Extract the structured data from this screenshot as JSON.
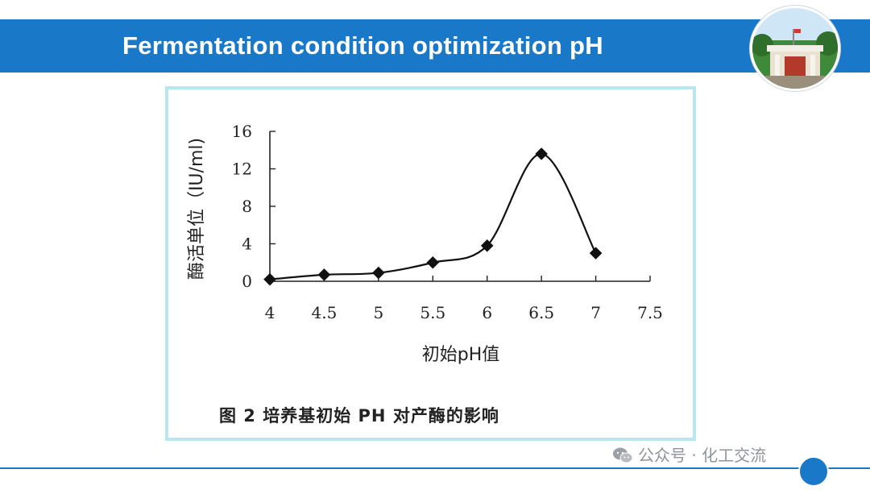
{
  "slide": {
    "title": "Fermentation condition optimization pH",
    "caption": "图 2 培养基初始 PH 对产酶的影响",
    "watermark": "公众号 · 化工交流"
  },
  "colors": {
    "accent": "#1a78c8",
    "frame": "#b8e8ee"
  },
  "icons": {
    "logo": "campus-gate-logo",
    "watermark": "wechat-icon"
  },
  "chart_data": {
    "type": "line",
    "xlabel": "初始pH值",
    "ylabel": "酶活单位（IU/ml)",
    "xlim": [
      4,
      7.5
    ],
    "ylim": [
      0,
      16
    ],
    "x_ticks": [
      "4",
      "4.5",
      "5",
      "5.5",
      "6",
      "6.5",
      "7",
      "7.5"
    ],
    "y_ticks": [
      "0",
      "4",
      "8",
      "12",
      "16"
    ],
    "series": [
      {
        "x": [
          4,
          4.5,
          5,
          5.5,
          6,
          6.5,
          7
        ],
        "y": [
          0.2,
          0.7,
          0.9,
          2.0,
          3.8,
          13.6,
          3.0
        ]
      }
    ]
  }
}
